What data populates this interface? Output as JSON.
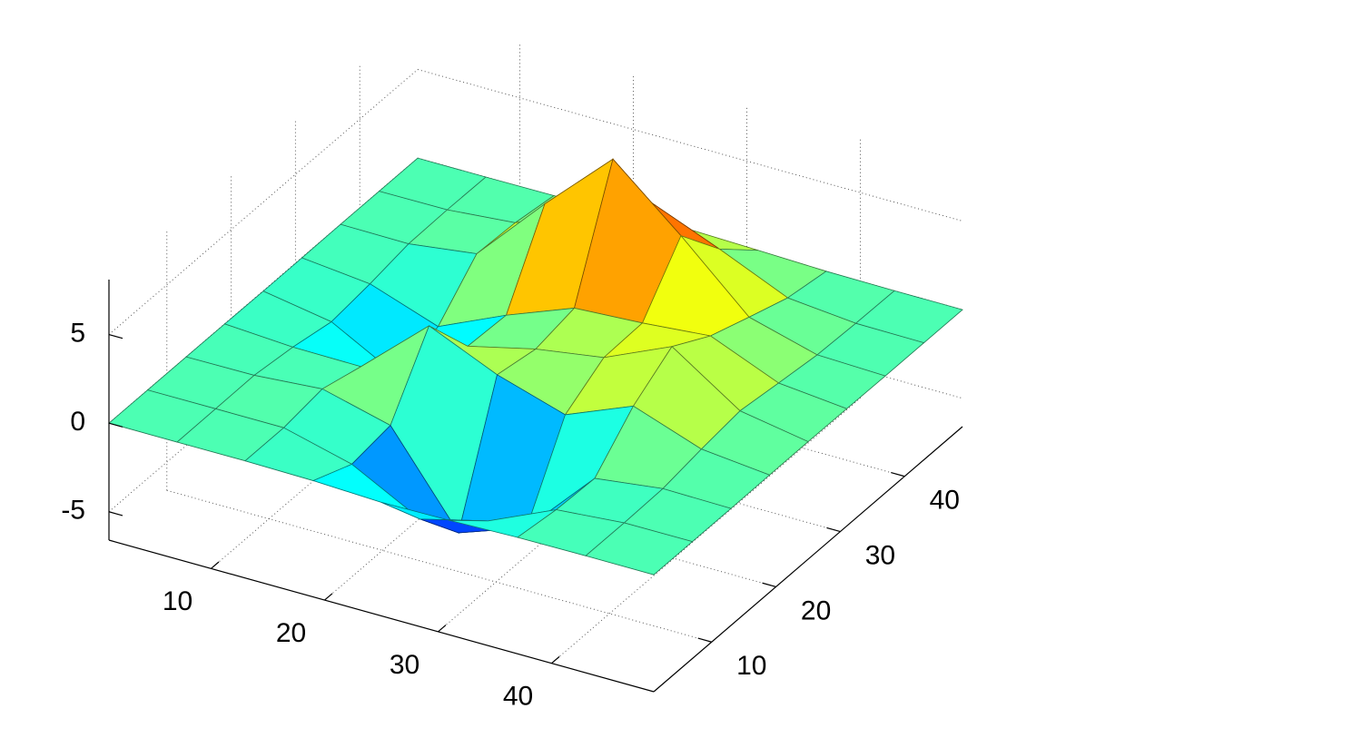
{
  "chart_data": {
    "type": "surface",
    "x": [
      1,
      7,
      13,
      19,
      25,
      31,
      37,
      43,
      49
    ],
    "y": [
      1,
      7,
      13,
      19,
      25,
      31,
      37,
      43,
      49
    ],
    "z": [
      [
        0,
        0,
        0.01,
        -0.04,
        -0.19,
        -0.14,
        -0.03,
        0,
        0
      ],
      [
        0,
        0.01,
        0.01,
        -0.98,
        -3.0,
        -2.04,
        -0.34,
        -0.01,
        0
      ],
      [
        0,
        0.03,
        0.33,
        -0.66,
        -5.65,
        -4.3,
        -0.44,
        0.05,
        0
      ],
      [
        -0.01,
        -0.25,
        -0.28,
        3.09,
        1.4,
        0.21,
        1.77,
        0.41,
        0.02
      ],
      [
        -0.03,
        -0.69,
        -2.76,
        0.07,
        0.98,
        1.57,
        3.26,
        0.7,
        0.03
      ],
      [
        -0.02,
        -0.42,
        -1.76,
        -0.05,
        1.42,
        1.65,
        1.99,
        0.4,
        0.02
      ],
      [
        0,
        -0.03,
        0.48,
        4.36,
        7.96,
        4.7,
        1.18,
        0.12,
        0
      ],
      [
        0,
        0.02,
        0.36,
        2.06,
        3.63,
        2.08,
        0.4,
        0.03,
        0
      ],
      [
        0,
        0,
        0.02,
        0.14,
        0.24,
        0.14,
        0.03,
        0,
        0
      ]
    ],
    "xlim": [
      1,
      49
    ],
    "ylim": [
      1,
      49
    ],
    "zlim": [
      -6.6,
      8.1
    ],
    "xticks": [
      10,
      20,
      30,
      40
    ],
    "yticks": [
      10,
      20,
      30,
      40
    ],
    "zticks": [
      -5,
      0,
      5
    ],
    "grid": true,
    "colormap": "jet",
    "edgecolor": "#000000"
  }
}
